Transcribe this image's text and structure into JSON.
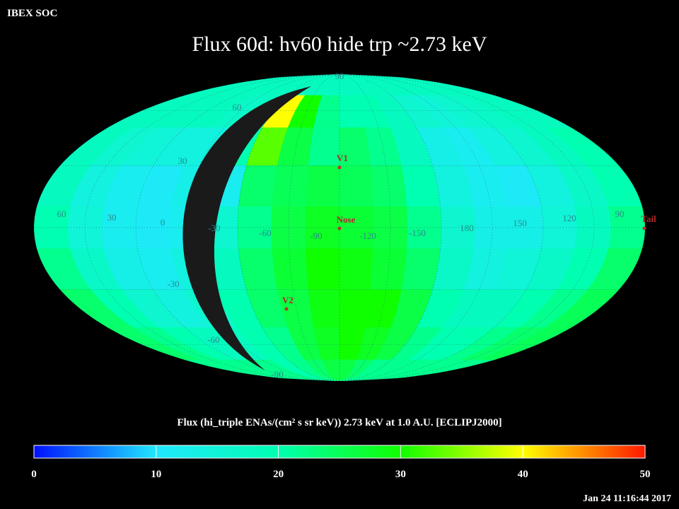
{
  "header": {
    "org": "IBEX SOC",
    "title": "Flux   60d: hv60 hide trp ~2.73 keV",
    "timestamp": "Jan 24 11:16:44 2017"
  },
  "map": {
    "type": "heatmap",
    "projection": "mollweide",
    "flux": [
      [
        18,
        18,
        18,
        18,
        18,
        18,
        18,
        18,
        18,
        18,
        18,
        18,
        18,
        18,
        18,
        18,
        18,
        18
      ],
      [
        18,
        18,
        18,
        18,
        17,
        18,
        40,
        30,
        22,
        20,
        20,
        18,
        16,
        15,
        16,
        17,
        18,
        18
      ],
      [
        18,
        16,
        15,
        14,
        14,
        20,
        33,
        26,
        22,
        24,
        22,
        18,
        13,
        12,
        14,
        16,
        18,
        20
      ],
      [
        18,
        14,
        12,
        11,
        13,
        12,
        24,
        25,
        26,
        25,
        24,
        20,
        14,
        12,
        11,
        14,
        17,
        20
      ],
      [
        20,
        15,
        12,
        11,
        12,
        16,
        22,
        26,
        28,
        27,
        26,
        22,
        16,
        13,
        13,
        15,
        18,
        22
      ],
      [
        22,
        17,
        13,
        12,
        14,
        18,
        24,
        27,
        30,
        29,
        27,
        24,
        17,
        14,
        15,
        17,
        20,
        24
      ],
      [
        24,
        20,
        16,
        14,
        16,
        20,
        24,
        26,
        29,
        30,
        30,
        26,
        20,
        18,
        18,
        20,
        22,
        25
      ],
      [
        24,
        22,
        20,
        18,
        18,
        20,
        22,
        26,
        28,
        30,
        28,
        26,
        22,
        20,
        20,
        22,
        24,
        25
      ],
      [
        22,
        22,
        22,
        22,
        22,
        20,
        22,
        24,
        26,
        26,
        24,
        22,
        22,
        22,
        22,
        22,
        22,
        22
      ]
    ],
    "lon_labels": [
      "60",
      "30",
      "0",
      "-30",
      "-60",
      "-90",
      "-120",
      "-150",
      "180",
      "150",
      "120",
      "90"
    ],
    "lat_labels": [
      "90",
      "60",
      "30",
      "-30",
      "-60",
      "-90"
    ],
    "markers": [
      {
        "label": "V1"
      },
      {
        "label": "Nose"
      },
      {
        "label": "V2"
      },
      {
        "label": "Tail"
      }
    ]
  },
  "colorbar": {
    "label": "Flux (hi_triple ENAs/(cm² s sr keV))  2.73 keV at 1.0 A.U. [ECLIPJ2000]",
    "lim": [
      0,
      50
    ],
    "ticks": [
      0,
      10,
      20,
      30,
      40,
      50
    ],
    "colors": [
      "#0010ff",
      "#20e8ff",
      "#00ffb0",
      "#10ff00",
      "#ffff00",
      "#ff1800"
    ]
  }
}
